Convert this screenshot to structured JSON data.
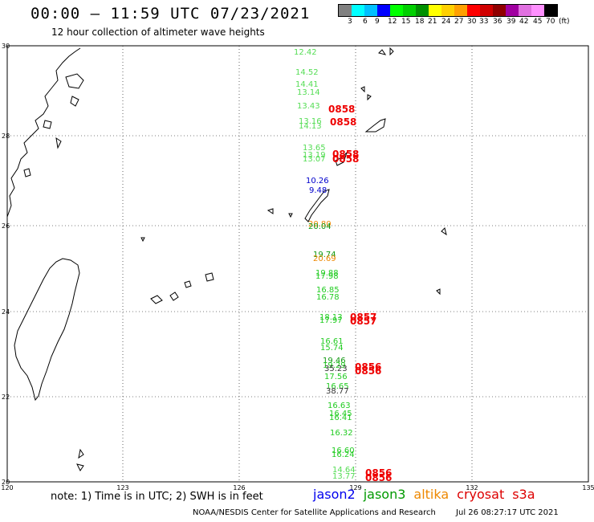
{
  "header": {
    "title": "00:00 — 11:59 UTC 07/23/2021",
    "subtitle": "12 hour collection of altimeter wave heights"
  },
  "legend": {
    "labels": [
      "3",
      "6",
      "9",
      "12",
      "15",
      "18",
      "21",
      "24",
      "27",
      "30",
      "33",
      "36",
      "39",
      "42",
      "45",
      "70",
      "(ft)"
    ],
    "colors": [
      "#808080",
      "#00ffff",
      "#00c0ff",
      "#0000ff",
      "#00ff00",
      "#00d000",
      "#009000",
      "#ffff00",
      "#ffd000",
      "#ffa000",
      "#ff0000",
      "#d00000",
      "#900000",
      "#a000a0",
      "#e070e0",
      "#ff90ff",
      "#000000"
    ]
  },
  "axes": {
    "lat_labels": [
      "30",
      "28",
      "26",
      "24",
      "22",
      "20"
    ],
    "lon_labels": [
      "120",
      "123",
      "126",
      "129",
      "132",
      "135"
    ]
  },
  "observations": [
    {
      "text": "12.42",
      "color": "#55dd55"
    },
    {
      "text": "14.52",
      "color": "#55dd55"
    },
    {
      "text": "14.41",
      "color": "#55dd55"
    },
    {
      "text": "13.14",
      "color": "#55dd55"
    },
    {
      "text": "13.43",
      "color": "#55dd55"
    },
    {
      "text": "13.16",
      "color": "#55dd55"
    },
    {
      "text": "14.13",
      "color": "#55dd55"
    },
    {
      "text": "13.65",
      "color": "#55dd55"
    },
    {
      "text": "13.19",
      "color": "#55dd55"
    },
    {
      "text": "13.07",
      "color": "#55dd55"
    },
    {
      "text": "10.26",
      "color": "#0000cc"
    },
    {
      "text": "9.48",
      "color": "#0000cc"
    },
    {
      "text": "20.80",
      "color": "#ee8800"
    },
    {
      "text": "20.04",
      "color": "#119911"
    },
    {
      "text": "19.74",
      "color": "#119911"
    },
    {
      "text": "20.69",
      "color": "#ee8800"
    },
    {
      "text": "19.88",
      "color": "#22cc22"
    },
    {
      "text": "17.98",
      "color": "#22cc22"
    },
    {
      "text": "16.85",
      "color": "#22cc22"
    },
    {
      "text": "16.78",
      "color": "#22cc22"
    },
    {
      "text": "18.13",
      "color": "#22cc22"
    },
    {
      "text": "17.97",
      "color": "#22cc22"
    },
    {
      "text": "16.61",
      "color": "#22cc22"
    },
    {
      "text": "15.74",
      "color": "#22cc22"
    },
    {
      "text": "19.46",
      "color": "#119911"
    },
    {
      "text": "19.29",
      "color": "#22cc22"
    },
    {
      "text": "35.23",
      "color": "#333333"
    },
    {
      "text": "17.56",
      "color": "#22cc22"
    },
    {
      "text": "16.65",
      "color": "#22cc22"
    },
    {
      "text": "38.77",
      "color": "#333333"
    },
    {
      "text": "16.63",
      "color": "#22cc22"
    },
    {
      "text": "16.45",
      "color": "#22cc22"
    },
    {
      "text": "16.41",
      "color": "#22cc22"
    },
    {
      "text": "16.32",
      "color": "#22cc22"
    },
    {
      "text": "16.60",
      "color": "#22cc22"
    },
    {
      "text": "16.24",
      "color": "#22cc22"
    },
    {
      "text": "14.64",
      "color": "#55dd55"
    },
    {
      "text": "13.77",
      "color": "#55dd55"
    }
  ],
  "time_tags": [
    {
      "text": "0858",
      "color": "#ee0000"
    },
    {
      "text": "0858",
      "color": "#ee0000"
    },
    {
      "text": "0858",
      "color": "#ee0000"
    },
    {
      "text": "0858",
      "color": "#ee0000"
    },
    {
      "text": "0857",
      "color": "#ee0000"
    },
    {
      "text": "0857",
      "color": "#ee0000"
    },
    {
      "text": "0856",
      "color": "#ee0000"
    },
    {
      "text": "0856",
      "color": "#ee0000"
    },
    {
      "text": "0856",
      "color": "#ee0000"
    },
    {
      "text": "0856",
      "color": "#ee0000"
    }
  ],
  "footer": {
    "note": "note: 1) Time is in UTC; 2) SWH is in feet",
    "satellites": [
      {
        "name": "jason2",
        "color": "#0000ee"
      },
      {
        "name": "jason3",
        "color": "#009900"
      },
      {
        "name": "altika",
        "color": "#ee8800"
      },
      {
        "name": "cryosat",
        "color": "#dd0000"
      },
      {
        "name": "s3a",
        "color": "#dd0000"
      }
    ],
    "credit": "NOAA/NESDIS Center for Satellite Applications and Research",
    "timestamp": "Jul 26 08:27:17 UTC 2021"
  }
}
